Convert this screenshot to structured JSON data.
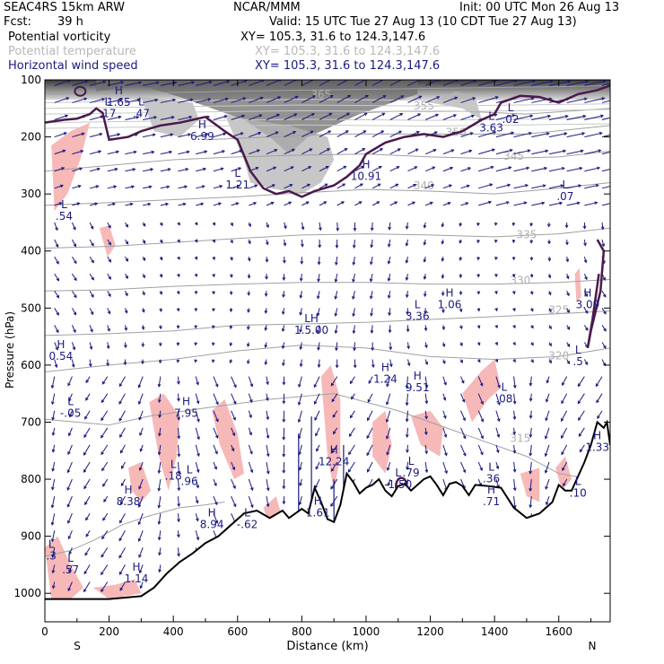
{
  "header": {
    "model": "SEAC4RS 15km ARW",
    "org": "NCAR/MMM",
    "init": "Init: 00 UTC Mon 26 Aug 13",
    "fcst_label": "Fcst:",
    "fcst_value": "39 h",
    "valid": "Valid: 15 UTC Tue 27 Aug 13 (10 CDT Tue 27 Aug 13)",
    "fields": [
      {
        "name": "Potential vorticity",
        "xy": "XY= 105.3, 31.6 to 124.3,147.6",
        "color": "#000000"
      },
      {
        "name": "Potential temperature",
        "xy": "XY= 105.3, 31.6 to 124.3,147.6",
        "color": "#b8b8b8"
      },
      {
        "name": "Horizontal wind speed",
        "xy": "XY= 105.3, 31.6 to 124.3,147.6",
        "color": "#1a1a80"
      }
    ]
  },
  "chart_data": {
    "type": "cross-section",
    "xlabel": "Distance (km)",
    "ylabel": "Pressure (hPa)",
    "xlim": [
      0,
      1760
    ],
    "ylim": [
      1050,
      100
    ],
    "x_ticks": [
      0,
      200,
      400,
      600,
      800,
      1000,
      1200,
      1400,
      1600
    ],
    "y_ticks": [
      100,
      200,
      300,
      400,
      500,
      600,
      700,
      800,
      900,
      1000
    ],
    "x_end_labels": {
      "left": "S",
      "right": "N"
    },
    "terrain_surface": [
      [
        0,
        1010
      ],
      [
        200,
        1010
      ],
      [
        300,
        1005
      ],
      [
        340,
        990
      ],
      [
        380,
        965
      ],
      [
        420,
        945
      ],
      [
        460,
        930
      ],
      [
        500,
        912
      ],
      [
        540,
        900
      ],
      [
        580,
        880
      ],
      [
        620,
        860
      ],
      [
        660,
        855
      ],
      [
        700,
        868
      ],
      [
        740,
        855
      ],
      [
        760,
        868
      ],
      [
        780,
        860
      ],
      [
        800,
        852
      ],
      [
        820,
        860
      ],
      [
        840,
        815
      ],
      [
        860,
        840
      ],
      [
        880,
        870
      ],
      [
        900,
        875
      ],
      [
        920,
        845
      ],
      [
        940,
        790
      ],
      [
        960,
        805
      ],
      [
        980,
        825
      ],
      [
        1000,
        815
      ],
      [
        1020,
        810
      ],
      [
        1040,
        800
      ],
      [
        1060,
        820
      ],
      [
        1080,
        830
      ],
      [
        1100,
        812
      ],
      [
        1120,
        808
      ],
      [
        1140,
        820
      ],
      [
        1160,
        810
      ],
      [
        1180,
        800
      ],
      [
        1200,
        795
      ],
      [
        1220,
        810
      ],
      [
        1240,
        828
      ],
      [
        1260,
        808
      ],
      [
        1280,
        805
      ],
      [
        1300,
        812
      ],
      [
        1320,
        828
      ],
      [
        1340,
        810
      ],
      [
        1380,
        812
      ],
      [
        1420,
        815
      ],
      [
        1460,
        850
      ],
      [
        1500,
        868
      ],
      [
        1540,
        860
      ],
      [
        1580,
        840
      ],
      [
        1600,
        810
      ],
      [
        1620,
        820
      ],
      [
        1640,
        820
      ],
      [
        1680,
        770
      ],
      [
        1700,
        740
      ],
      [
        1720,
        700
      ],
      [
        1740,
        710
      ],
      [
        1750,
        700
      ],
      [
        1760,
        740
      ]
    ],
    "theta_contours": [
      {
        "level": 305,
        "label": "305"
      },
      {
        "level": 315,
        "label": "315"
      },
      {
        "level": 320,
        "label": "320"
      },
      {
        "level": 325,
        "label": "325"
      },
      {
        "level": 330,
        "label": "330"
      },
      {
        "level": 335,
        "label": "335"
      },
      {
        "level": 340,
        "label": "340"
      },
      {
        "level": 345,
        "label": "345"
      },
      {
        "level": 350,
        "label": "350"
      },
      {
        "level": 355,
        "label": "355"
      },
      {
        "level": 365,
        "label": "365"
      }
    ],
    "hl_markers": [
      {
        "type": "H",
        "value": "1.65",
        "x": 230,
        "p": 125
      },
      {
        "type": "L",
        "value": ".17",
        "x": 195,
        "p": 145
      },
      {
        "type": "L",
        "value": ".47",
        "x": 300,
        "p": 145
      },
      {
        "type": "H",
        "value": "6.99",
        "x": 490,
        "p": 185
      },
      {
        "type": "L",
        "value": "3.63",
        "x": 1390,
        "p": 170
      },
      {
        "type": "L",
        "value": ".02",
        "x": 1450,
        "p": 155
      },
      {
        "type": "L",
        "value": "1.21",
        "x": 600,
        "p": 270
      },
      {
        "type": "H",
        "value": "10.91",
        "x": 1000,
        "p": 255
      },
      {
        "type": "L",
        "value": ".07",
        "x": 1620,
        "p": 290
      },
      {
        "type": "L",
        "value": ".54",
        "x": 60,
        "p": 325
      },
      {
        "type": "H",
        "value": "3.09",
        "x": 1690,
        "p": 480
      },
      {
        "type": "H",
        "value": "1.06",
        "x": 1260,
        "p": 480
      },
      {
        "type": "L",
        "value": "3.36",
        "x": 1160,
        "p": 500
      },
      {
        "type": "LH",
        "value": "1.5.00",
        "x": 830,
        "p": 525
      },
      {
        "type": "H",
        "value": "0.54",
        "x": 50,
        "p": 570
      },
      {
        "type": "L",
        "value": ".5",
        "x": 1660,
        "p": 580
      },
      {
        "type": "H",
        "value": "1.24",
        "x": 1060,
        "p": 610
      },
      {
        "type": "H",
        "value": "9.51",
        "x": 1160,
        "p": 625
      },
      {
        "type": "L",
        "value": ".08",
        "x": 1430,
        "p": 645
      },
      {
        "type": "L",
        "value": "-.05",
        "x": 80,
        "p": 670
      },
      {
        "type": "H",
        "value": "7.95",
        "x": 440,
        "p": 670
      },
      {
        "type": "H",
        "value": "1.33",
        "x": 1720,
        "p": 730
      },
      {
        "type": "H",
        "value": "12.24",
        "x": 900,
        "p": 755
      },
      {
        "type": "L",
        "value": ".18",
        "x": 400,
        "p": 780
      },
      {
        "type": "L",
        "value": ".96",
        "x": 450,
        "p": 790
      },
      {
        "type": "L",
        "value": ".79",
        "x": 1140,
        "p": 775
      },
      {
        "type": "L",
        "value": "-1.50",
        "x": 1100,
        "p": 795
      },
      {
        "type": "L",
        "value": ".36",
        "x": 1390,
        "p": 785
      },
      {
        "type": "L",
        "value": ".10",
        "x": 1660,
        "p": 810
      },
      {
        "type": "H",
        "value": "8.38",
        "x": 260,
        "p": 825
      },
      {
        "type": "H",
        "value": ".71",
        "x": 1390,
        "p": 825
      },
      {
        "type": "H",
        "value": "1.61",
        "x": 850,
        "p": 845
      },
      {
        "type": "H",
        "value": "8.94",
        "x": 520,
        "p": 865
      },
      {
        "type": "L",
        "value": "-.62",
        "x": 630,
        "p": 865
      },
      {
        "type": "L",
        "value": ".3",
        "x": 20,
        "p": 920
      },
      {
        "type": "L",
        "value": ".57",
        "x": 80,
        "p": 945
      },
      {
        "type": "H",
        "value": "1.14",
        "x": 285,
        "p": 960
      }
    ]
  }
}
